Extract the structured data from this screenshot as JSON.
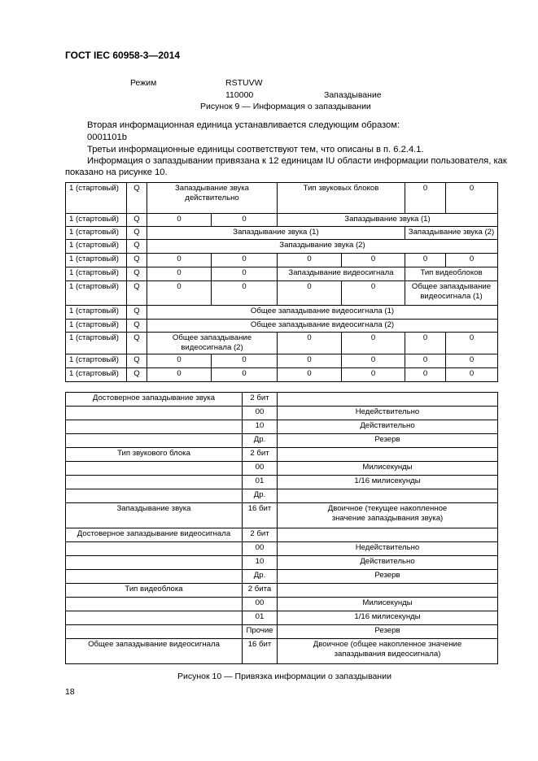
{
  "header": {
    "doc_id": "ГОСТ IEC 60958-3—2014"
  },
  "figure9": {
    "mode_label": "Режим",
    "bits_header": "RSTUVW",
    "bits_value": "110000",
    "value_label": "Запаздывание",
    "caption": "Рисунок 9 — Информация о запаздывании"
  },
  "body": {
    "line1": "Вторая информационная единица устанавливается следующим образом:",
    "line2": "0001101b",
    "line3": "Третьи информационные единицы соответствуют тем, что описаны в п. 6.2.4.1.",
    "line4": "Информация о запаздывании привязана к 12 единицам IU области информации пользователя, как",
    "line5": "показано на рисунке 10."
  },
  "table1": {
    "rows": [
      [
        {
          "t": "1 (стартовый)"
        },
        {
          "t": "Q"
        },
        {
          "t": "Запаздывание звука действительно",
          "s": 2
        },
        {
          "t": "Тип звуковых блоков",
          "s": 2
        },
        {
          "t": "0"
        },
        {
          "t": "0"
        }
      ],
      [
        {
          "t": "1 (стартовый)"
        },
        {
          "t": "Q"
        },
        {
          "t": "0"
        },
        {
          "t": "0"
        },
        {
          "t": "Запаздывание звука (1)",
          "s": 4
        }
      ],
      [
        {
          "t": "1 (стартовый)"
        },
        {
          "t": "Q"
        },
        {
          "t": "Запаздывание звука (1)",
          "s": 4
        },
        {
          "t": "Запаздывание звука (2)",
          "s": 2
        }
      ],
      [
        {
          "t": "1 (стартовый)"
        },
        {
          "t": "Q"
        },
        {
          "t": "Запаздывание звука (2)",
          "s": 6
        }
      ],
      [
        {
          "t": "1 (стартовый)"
        },
        {
          "t": "Q"
        },
        {
          "t": "0"
        },
        {
          "t": "0"
        },
        {
          "t": "0"
        },
        {
          "t": "0"
        },
        {
          "t": "0"
        },
        {
          "t": "0"
        }
      ],
      [
        {
          "t": "1 (стартовый)"
        },
        {
          "t": "Q"
        },
        {
          "t": "0"
        },
        {
          "t": "0"
        },
        {
          "t": "Запаздывание видеосигнала",
          "s": 2
        },
        {
          "t": "Тип видеоблоков",
          "s": 2
        }
      ],
      [
        {
          "t": "1 (стартовый)"
        },
        {
          "t": "Q"
        },
        {
          "t": "0"
        },
        {
          "t": "0"
        },
        {
          "t": "0"
        },
        {
          "t": "0"
        },
        {
          "t": "Общее запаздывание видеосигнала (1)",
          "s": 2
        }
      ],
      [
        {
          "t": "1 (стартовый)"
        },
        {
          "t": "Q"
        },
        {
          "t": "Общее запаздывание видеосигнала (1)",
          "s": 6
        }
      ],
      [
        {
          "t": "1 (стартовый)"
        },
        {
          "t": "Q"
        },
        {
          "t": "Общее запаздывание видеосигнала (2)",
          "s": 6
        }
      ],
      [
        {
          "t": "1 (стартовый)"
        },
        {
          "t": "Q"
        },
        {
          "t": "Общее запаздывание видеосигнала (2)",
          "s": 2
        },
        {
          "t": "0"
        },
        {
          "t": "0"
        },
        {
          "t": "0"
        },
        {
          "t": "0"
        }
      ],
      [
        {
          "t": "1 (стартовый)"
        },
        {
          "t": "Q"
        },
        {
          "t": "0"
        },
        {
          "t": "0"
        },
        {
          "t": "0"
        },
        {
          "t": "0"
        },
        {
          "t": "0"
        },
        {
          "t": "0"
        }
      ],
      [
        {
          "t": "1 (стартовый)"
        },
        {
          "t": "Q"
        },
        {
          "t": "0"
        },
        {
          "t": "0"
        },
        {
          "t": "0"
        },
        {
          "t": "0"
        },
        {
          "t": "0"
        },
        {
          "t": "0"
        }
      ]
    ]
  },
  "table2": {
    "rows": [
      [
        "Достоверное запаздывание звука",
        "2 бит",
        ""
      ],
      [
        "",
        "00",
        "Недействительно"
      ],
      [
        "",
        "10",
        "Действительно"
      ],
      [
        "",
        "Др.",
        "Резерв"
      ],
      [
        "Тип звукового блока",
        "2 бит",
        ""
      ],
      [
        "",
        "00",
        "Милисекунды"
      ],
      [
        "",
        "01",
        "1/16 милисекунды"
      ],
      [
        "",
        "Др.",
        ""
      ],
      [
        "Запаздывание звука",
        "16 бит",
        "Двоичное (текущее накопленное значение запаздывания звука)"
      ],
      [
        "Достоверное запаздывание видеосигнала",
        "2 бит",
        ""
      ],
      [
        "",
        "00",
        "Недействительно"
      ],
      [
        "",
        "10",
        "Действительно"
      ],
      [
        "",
        "Др.",
        "Резерв"
      ],
      [
        "Тип видеоблока",
        "2 бита",
        ""
      ],
      [
        "",
        "00",
        "Милисекунды"
      ],
      [
        "",
        "01",
        "1/16 милисекунды"
      ],
      [
        "",
        "Прочие",
        "Резерв"
      ],
      [
        "Общее запаздывание видеосигнала",
        "16 бит",
        "Двоичное (общее накопленное значение запаздывания видеосигнала)"
      ]
    ]
  },
  "figure10": {
    "caption": "Рисунок 10 — Привязка информации о запаздывании"
  },
  "footer": {
    "page_number": "18"
  }
}
